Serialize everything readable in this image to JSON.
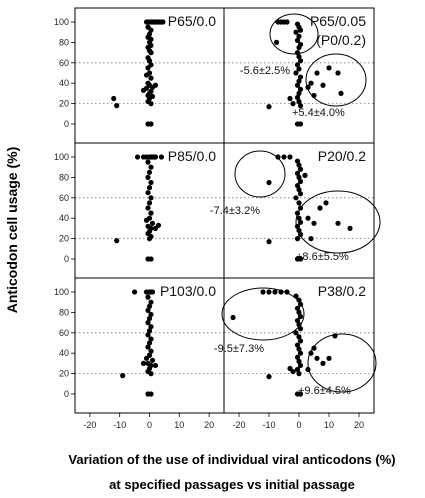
{
  "chart_data": {
    "type": "scatter",
    "ylabel": "Anticodon cell usage (%)",
    "xlabel_lines": [
      "Variation of the use of individual viral anticodons (%)",
      "at specified passages vs initial passage"
    ],
    "xlim": [
      -25,
      25
    ],
    "ylim": [
      -10,
      110
    ],
    "x_ticks": [
      -20,
      -10,
      0,
      10,
      20
    ],
    "y_ticks": [
      0,
      20,
      40,
      60,
      80,
      100
    ],
    "reference_lines_y": [
      20,
      60
    ],
    "panels": [
      {
        "label": "P65/0.0",
        "points": [
          [
            -1,
            100
          ],
          [
            -0.5,
            100
          ],
          [
            0,
            100
          ],
          [
            0.5,
            100
          ],
          [
            1,
            100
          ],
          [
            1.5,
            100
          ],
          [
            2,
            100
          ],
          [
            2.5,
            100
          ],
          [
            3,
            100
          ],
          [
            3.5,
            100
          ],
          [
            4,
            100
          ],
          [
            4.5,
            100
          ],
          [
            -0.5,
            95
          ],
          [
            0.5,
            92
          ],
          [
            0,
            88
          ],
          [
            -0.5,
            85
          ],
          [
            0.5,
            83
          ],
          [
            0,
            80
          ],
          [
            0.5,
            77
          ],
          [
            -0.5,
            75
          ],
          [
            0,
            72
          ],
          [
            0.5,
            70
          ],
          [
            -0.5,
            65
          ],
          [
            0,
            62
          ],
          [
            0.5,
            58
          ],
          [
            -0.5,
            55
          ],
          [
            0,
            50
          ],
          [
            -1,
            48
          ],
          [
            0.5,
            45
          ],
          [
            -0.5,
            40
          ],
          [
            0,
            38
          ],
          [
            1,
            36
          ],
          [
            -1,
            35
          ],
          [
            0.5,
            32
          ],
          [
            0,
            30
          ],
          [
            -0.5,
            28
          ],
          [
            1,
            27
          ],
          [
            0,
            25
          ],
          [
            -0.5,
            22
          ],
          [
            0.5,
            20
          ],
          [
            2,
            38
          ],
          [
            -2,
            33
          ],
          [
            -12,
            25
          ],
          [
            -11,
            18
          ],
          [
            -0.5,
            0
          ],
          [
            0.5,
            0
          ]
        ],
        "annotations": []
      },
      {
        "label": "P65/0.05",
        "label_line2": "(P0/0.2)",
        "points": [
          [
            -7,
            100
          ],
          [
            -6,
            100
          ],
          [
            -5,
            100
          ],
          [
            -4,
            100
          ],
          [
            -7.5,
            80
          ],
          [
            -0.5,
            98
          ],
          [
            0,
            95
          ],
          [
            0.5,
            92
          ],
          [
            -1,
            90
          ],
          [
            0,
            86
          ],
          [
            -0.5,
            82
          ],
          [
            0.5,
            78
          ],
          [
            0,
            75
          ],
          [
            -0.5,
            70
          ],
          [
            0,
            66
          ],
          [
            0.5,
            62
          ],
          [
            -0.5,
            58
          ],
          [
            0,
            54
          ],
          [
            -1,
            50
          ],
          [
            0.5,
            46
          ],
          [
            0,
            42
          ],
          [
            -0.5,
            38
          ],
          [
            0.5,
            34
          ],
          [
            0,
            30
          ],
          [
            -0.5,
            26
          ],
          [
            0,
            22
          ],
          [
            0.5,
            18
          ],
          [
            -3,
            25
          ],
          [
            -2,
            20
          ],
          [
            -10,
            17
          ],
          [
            -0.5,
            0
          ],
          [
            0.5,
            0
          ],
          [
            4,
            40
          ],
          [
            6,
            50
          ],
          [
            8,
            38
          ],
          [
            10,
            55
          ],
          [
            13,
            50
          ],
          [
            14,
            30
          ],
          [
            3,
            36
          ],
          [
            5,
            28
          ]
        ],
        "annotations": [
          {
            "text": "-5.6±2.5%"
          },
          {
            "text": "+5.4±4.0%"
          }
        ]
      },
      {
        "label": "P85/0.0",
        "points": [
          [
            -2,
            100
          ],
          [
            -1,
            100
          ],
          [
            0,
            100
          ],
          [
            0.5,
            100
          ],
          [
            1,
            100
          ],
          [
            1.5,
            100
          ],
          [
            2,
            100
          ],
          [
            -0.5,
            95
          ],
          [
            0.5,
            90
          ],
          [
            0,
            85
          ],
          [
            -0.5,
            80
          ],
          [
            0.5,
            75
          ],
          [
            0,
            70
          ],
          [
            -0.5,
            65
          ],
          [
            0.5,
            60
          ],
          [
            0,
            55
          ],
          [
            -0.5,
            50
          ],
          [
            0.5,
            45
          ],
          [
            0,
            40
          ],
          [
            -1,
            38
          ],
          [
            1,
            35
          ],
          [
            -0.5,
            32
          ],
          [
            0.5,
            30
          ],
          [
            0,
            27
          ],
          [
            -0.5,
            25
          ],
          [
            0.5,
            22
          ],
          [
            0,
            20
          ],
          [
            2,
            30
          ],
          [
            3,
            33
          ],
          [
            -4,
            100
          ],
          [
            4,
            100
          ],
          [
            -11,
            18
          ],
          [
            -0.5,
            0
          ],
          [
            0.5,
            0
          ]
        ],
        "annotations": []
      },
      {
        "label": "P20/0.2",
        "points": [
          [
            -7,
            100
          ],
          [
            -5,
            100
          ],
          [
            -3,
            100
          ],
          [
            -10,
            75
          ],
          [
            -0.5,
            96
          ],
          [
            0,
            92
          ],
          [
            0.5,
            88
          ],
          [
            -0.5,
            84
          ],
          [
            0,
            80
          ],
          [
            0.5,
            76
          ],
          [
            -0.5,
            72
          ],
          [
            0,
            68
          ],
          [
            0.5,
            64
          ],
          [
            -1,
            60
          ],
          [
            0,
            55
          ],
          [
            0.5,
            50
          ],
          [
            -0.5,
            45
          ],
          [
            0,
            40
          ],
          [
            0.5,
            36
          ],
          [
            -0.5,
            32
          ],
          [
            0,
            28
          ],
          [
            0.5,
            24
          ],
          [
            -0.5,
            20
          ],
          [
            -10,
            17
          ],
          [
            -0.5,
            0
          ],
          [
            0.5,
            0
          ],
          [
            3,
            40
          ],
          [
            5,
            35
          ],
          [
            7,
            50
          ],
          [
            9,
            55
          ],
          [
            13,
            35
          ],
          [
            17,
            30
          ],
          [
            4,
            20
          ],
          [
            2,
            82
          ]
        ],
        "annotations": [
          {
            "text": "-7.4±3.2%"
          },
          {
            "text": "+8.6±5.5%"
          }
        ]
      },
      {
        "label": "P103/0.0",
        "points": [
          [
            -5,
            100
          ],
          [
            -1,
            100
          ],
          [
            0,
            100
          ],
          [
            0.5,
            100
          ],
          [
            1,
            100
          ],
          [
            -0.5,
            95
          ],
          [
            0.5,
            90
          ],
          [
            0,
            86
          ],
          [
            -0.5,
            82
          ],
          [
            0.5,
            78
          ],
          [
            0,
            74
          ],
          [
            -0.5,
            70
          ],
          [
            0.5,
            66
          ],
          [
            0,
            62
          ],
          [
            -0.5,
            58
          ],
          [
            0.5,
            54
          ],
          [
            0,
            50
          ],
          [
            -0.5,
            46
          ],
          [
            0.5,
            42
          ],
          [
            0,
            38
          ],
          [
            -1,
            35
          ],
          [
            1,
            33
          ],
          [
            -0.5,
            30
          ],
          [
            0.5,
            28
          ],
          [
            0,
            25
          ],
          [
            -2,
            30
          ],
          [
            2,
            28
          ],
          [
            -0.5,
            22
          ],
          [
            0.5,
            20
          ],
          [
            -9,
            18
          ],
          [
            -0.5,
            0
          ],
          [
            0.5,
            0
          ]
        ],
        "annotations": []
      },
      {
        "label": "P38/0.2",
        "points": [
          [
            -22,
            75
          ],
          [
            -12,
            100
          ],
          [
            -10,
            100
          ],
          [
            -8,
            100
          ],
          [
            -6,
            100
          ],
          [
            -4,
            100
          ],
          [
            -1,
            96
          ],
          [
            0,
            92
          ],
          [
            0.5,
            88
          ],
          [
            -0.5,
            84
          ],
          [
            0,
            80
          ],
          [
            0.5,
            76
          ],
          [
            -0.5,
            72
          ],
          [
            0,
            68
          ],
          [
            0.5,
            64
          ],
          [
            -1,
            60
          ],
          [
            0,
            56
          ],
          [
            0.5,
            52
          ],
          [
            -0.5,
            48
          ],
          [
            0,
            44
          ],
          [
            0.5,
            40
          ],
          [
            -0.5,
            36
          ],
          [
            0,
            32
          ],
          [
            0.5,
            28
          ],
          [
            -0.5,
            24
          ],
          [
            0,
            20
          ],
          [
            -10,
            17
          ],
          [
            -0.5,
            0
          ],
          [
            0.5,
            0
          ],
          [
            -3,
            25
          ],
          [
            -2,
            22
          ],
          [
            4,
            40
          ],
          [
            6,
            35
          ],
          [
            8,
            30
          ],
          [
            10,
            35
          ],
          [
            12,
            57
          ],
          [
            5,
            45
          ],
          [
            3,
            24
          ]
        ],
        "annotations": [
          {
            "text": "-9.5±7.3%"
          },
          {
            "text": "+9.6±4.5%"
          }
        ]
      }
    ]
  }
}
